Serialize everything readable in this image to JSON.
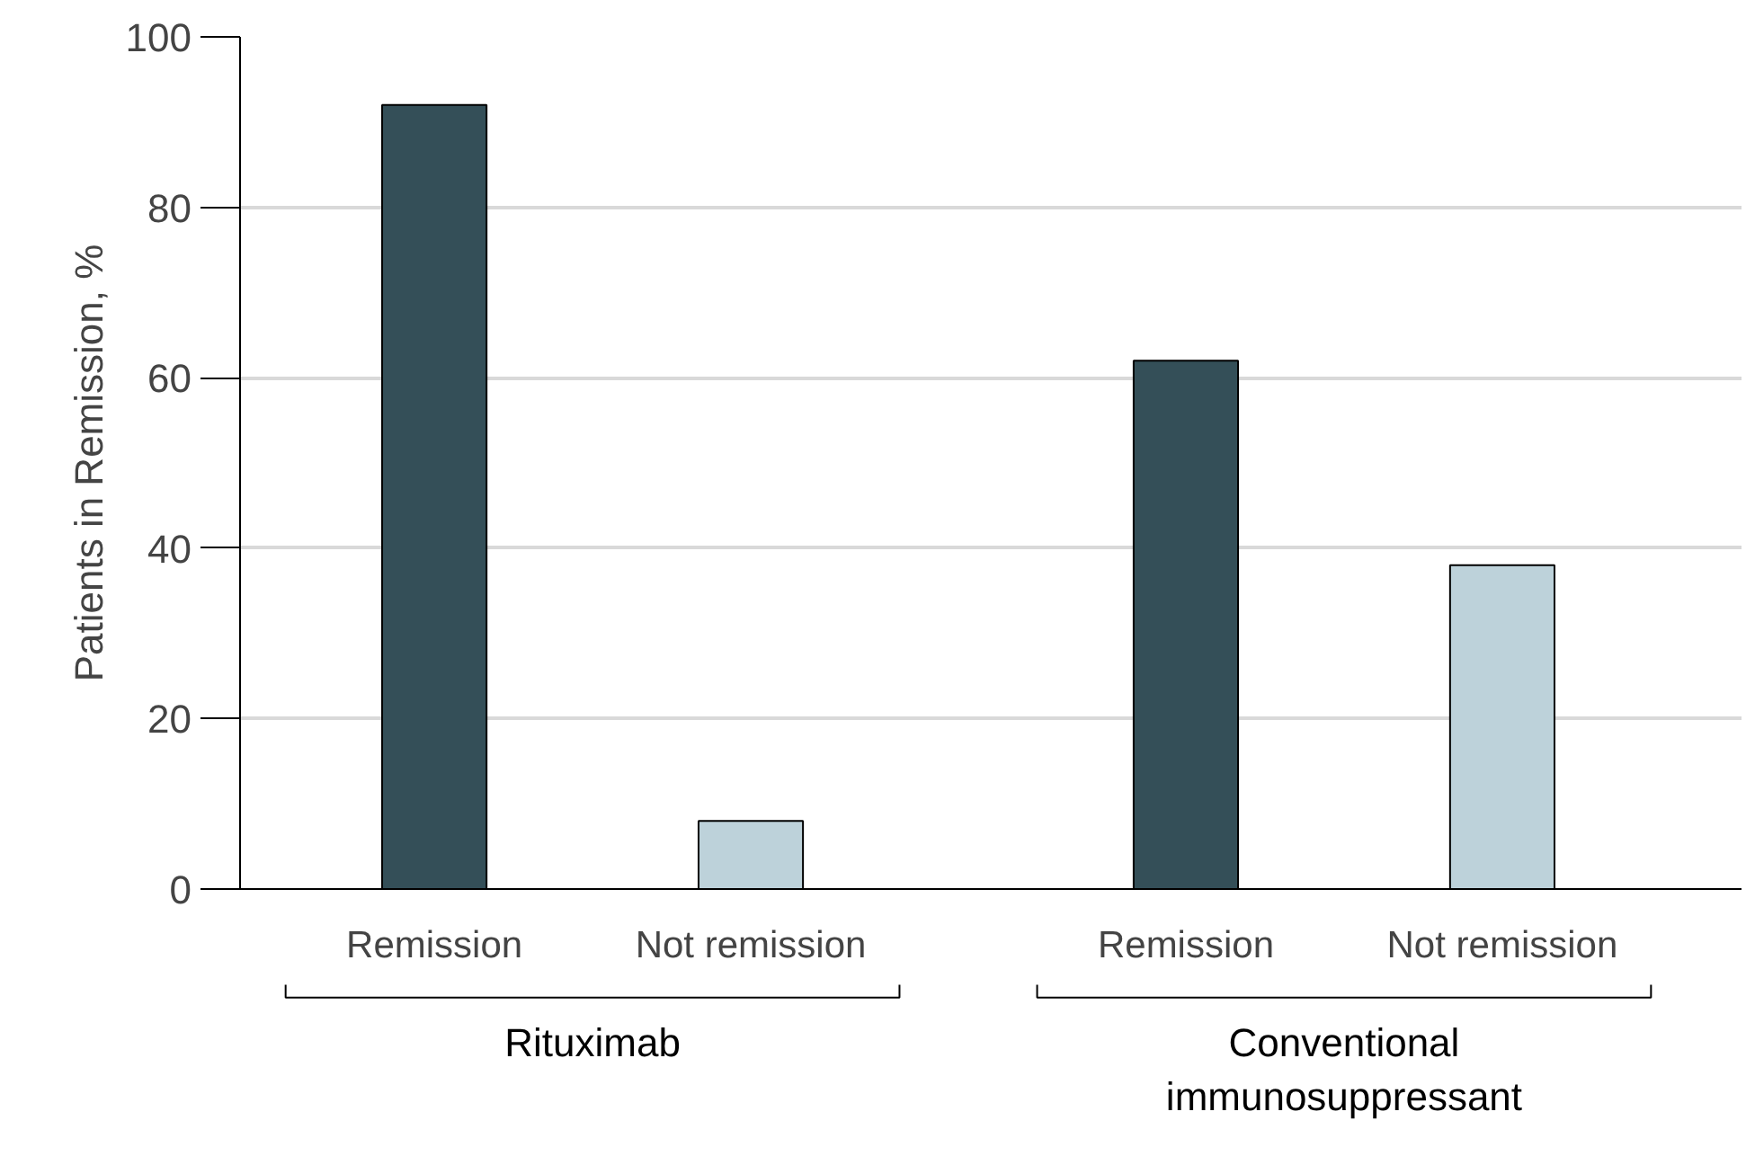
{
  "chart_data": {
    "type": "bar",
    "categories": [
      "Remission",
      "Not remission",
      "Remission",
      "Not remission"
    ],
    "values": [
      92,
      8,
      62,
      38
    ],
    "colors": [
      "#344f58",
      "#bdd2da",
      "#344f58",
      "#bdd2da"
    ],
    "ylabel": "Patients in Remission, %",
    "ylim": [
      0,
      100
    ],
    "yticks": [
      0,
      20,
      40,
      60,
      80,
      100
    ],
    "grid": "y",
    "annotations": [
      "Rituximab",
      "Conventional immunosuppressant"
    ]
  }
}
